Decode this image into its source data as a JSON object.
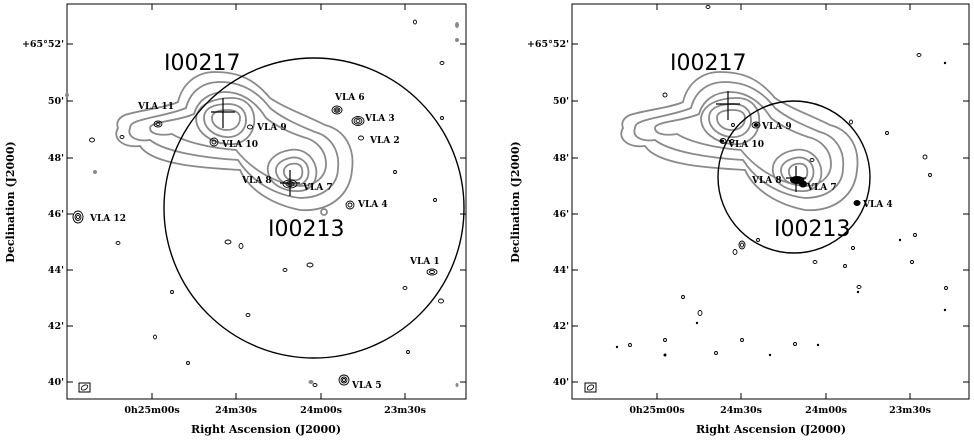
{
  "panels": [
    {
      "id": "left",
      "xlabel": "Right Ascension (J2000)",
      "ylabel": "Declination (J2000)",
      "ra_ticks": [
        "0h25m00s",
        "24m30s",
        "24m00s",
        "23m30s"
      ],
      "dec_ticks": [
        "+65°52'",
        "50'",
        "48'",
        "46'",
        "44'",
        "42'",
        "40'"
      ],
      "iras_labels": [
        "I00217",
        "I00213"
      ],
      "sources": [
        "VLA 1",
        "VLA 2",
        "VLA 3",
        "VLA 4",
        "VLA 5",
        "VLA 6",
        "VLA 7",
        "VLA 8",
        "VLA 9",
        "VLA 10",
        "VLA 11",
        "VLA 12"
      ]
    },
    {
      "id": "right",
      "xlabel": "Right Ascension (J2000)",
      "ylabel": "Declination (J2000)",
      "ra_ticks": [
        "0h25m00s",
        "24m30s",
        "24m00s",
        "23m30s"
      ],
      "dec_ticks": [
        "+65°52'",
        "50'",
        "48'",
        "46'",
        "44'",
        "42'",
        "40'"
      ],
      "iras_labels": [
        "I00217",
        "I00213"
      ],
      "sources": [
        "VLA 4",
        "VLA 7",
        "VLA 8",
        "VLA 9",
        "VLA 10"
      ]
    }
  ],
  "colors": {
    "gray_contours": "#8a8a8a",
    "black_contours": "#000000"
  }
}
